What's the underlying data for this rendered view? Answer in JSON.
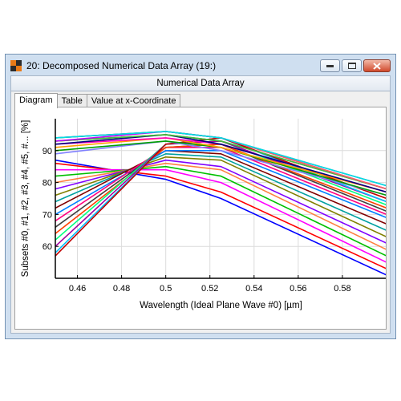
{
  "window": {
    "title": "20: Decomposed Numerical Data Array (19:)",
    "panel_header": "Numerical Data Array",
    "icons": {
      "app": "app-checker-icon",
      "minimize": "minimize-icon",
      "maximize": "maximize-icon",
      "close": "close-icon"
    }
  },
  "tabs": [
    {
      "label": "Diagram",
      "active": true
    },
    {
      "label": "Table",
      "active": false
    },
    {
      "label": "Value at x-Coordinate",
      "active": false
    }
  ],
  "chart_data": {
    "type": "line",
    "xlabel": "Wavelength (Ideal Plane Wave #0) [µm]",
    "ylabel": "Subsets #0, #1, #2, #3, #4, #5, #... [%]",
    "xlim": [
      0.45,
      0.6
    ],
    "ylim": [
      50,
      100
    ],
    "x_ticks": [
      "0.46",
      "0.48",
      "0.5",
      "0.52",
      "0.54",
      "0.56",
      "0.58"
    ],
    "y_ticks": [
      "60",
      "70",
      "80",
      "90"
    ],
    "y_tick_values": [
      60,
      70,
      80,
      90
    ],
    "x_tick_values": [
      0.46,
      0.48,
      0.5,
      0.52,
      0.54,
      0.56,
      0.58
    ],
    "grid": true,
    "series_count": 28,
    "series_shape": "concave curves; the peak wavelength of successive subsets shifts from about 0.45 µm to about 0.60 µm and a kink appears near 0.525 µm",
    "series": [
      {
        "color": "#0000ff",
        "x": [
          0.45,
          0.5,
          0.525,
          0.6
        ],
        "y": [
          87,
          81,
          75,
          51
        ]
      },
      {
        "color": "#ff0000",
        "x": [
          0.45,
          0.5,
          0.525,
          0.6
        ],
        "y": [
          86,
          82,
          77,
          53
        ]
      },
      {
        "color": "#ff00ff",
        "x": [
          0.45,
          0.5,
          0.525,
          0.6
        ],
        "y": [
          84,
          84,
          80,
          55
        ]
      },
      {
        "color": "#00c000",
        "x": [
          0.45,
          0.5,
          0.525,
          0.6
        ],
        "y": [
          82,
          85,
          82,
          57
        ]
      },
      {
        "color": "#ff8040",
        "x": [
          0.45,
          0.5,
          0.525,
          0.6
        ],
        "y": [
          80,
          86,
          84,
          59
        ]
      },
      {
        "color": "#8000ff",
        "x": [
          0.45,
          0.5,
          0.525,
          0.6
        ],
        "y": [
          78,
          87,
          85,
          61
        ]
      },
      {
        "color": "#808000",
        "x": [
          0.45,
          0.5,
          0.525,
          0.6
        ],
        "y": [
          76,
          88,
          87,
          63
        ]
      },
      {
        "color": "#00a0a0",
        "x": [
          0.45,
          0.5,
          0.525,
          0.6
        ],
        "y": [
          74,
          89,
          88,
          65
        ]
      },
      {
        "color": "#800000",
        "x": [
          0.45,
          0.5,
          0.525,
          0.6
        ],
        "y": [
          72,
          90,
          89,
          67
        ]
      },
      {
        "color": "#0080ff",
        "x": [
          0.45,
          0.5,
          0.525,
          0.6
        ],
        "y": [
          70,
          90,
          90,
          69
        ]
      },
      {
        "color": "#ff0080",
        "x": [
          0.45,
          0.5,
          0.525,
          0.6
        ],
        "y": [
          68,
          91,
          91,
          70
        ]
      },
      {
        "color": "#404040",
        "x": [
          0.45,
          0.5,
          0.525,
          0.6
        ],
        "y": [
          66,
          91,
          92,
          71
        ]
      },
      {
        "color": "#ff4000",
        "x": [
          0.45,
          0.5,
          0.525,
          0.6
        ],
        "y": [
          64,
          91,
          92,
          72
        ]
      },
      {
        "color": "#00ff80",
        "x": [
          0.45,
          0.5,
          0.525,
          0.6
        ],
        "y": [
          62,
          92,
          93,
          73
        ]
      },
      {
        "color": "#a000a0",
        "x": [
          0.45,
          0.5,
          0.525,
          0.6
        ],
        "y": [
          60,
          92,
          93,
          74
        ]
      },
      {
        "color": "#00c0ff",
        "x": [
          0.45,
          0.5,
          0.525,
          0.6
        ],
        "y": [
          58,
          92,
          94,
          74
        ]
      },
      {
        "color": "#c00000",
        "x": [
          0.45,
          0.5,
          0.525,
          0.6
        ],
        "y": [
          57,
          92,
          94,
          75
        ]
      },
      {
        "color": "#8080ff",
        "x": [
          0.45,
          0.5,
          0.525,
          0.6
        ],
        "y": [
          89,
          93,
          90,
          76
        ]
      },
      {
        "color": "#00a000",
        "x": [
          0.45,
          0.5,
          0.525,
          0.6
        ],
        "y": [
          90,
          93,
          91,
          76
        ]
      },
      {
        "color": "#ffa000",
        "x": [
          0.45,
          0.5,
          0.525,
          0.6
        ],
        "y": [
          91,
          94,
          91,
          77
        ]
      },
      {
        "color": "#ff00c0",
        "x": [
          0.45,
          0.5,
          0.525,
          0.6
        ],
        "y": [
          92,
          94,
          92,
          77
        ]
      },
      {
        "color": "#000080",
        "x": [
          0.45,
          0.5,
          0.525,
          0.6
        ],
        "y": [
          92,
          95,
          92,
          77
        ]
      },
      {
        "color": "#804000",
        "x": [
          0.45,
          0.5,
          0.525,
          0.6
        ],
        "y": [
          93,
          95,
          93,
          78
        ]
      },
      {
        "color": "#40c040",
        "x": [
          0.45,
          0.5,
          0.525,
          0.6
        ],
        "y": [
          93,
          95,
          93,
          78
        ]
      },
      {
        "color": "#c000ff",
        "x": [
          0.45,
          0.5,
          0.525,
          0.6
        ],
        "y": [
          93,
          96,
          94,
          78
        ]
      },
      {
        "color": "#ff6060",
        "x": [
          0.45,
          0.5,
          0.525,
          0.6
        ],
        "y": [
          94,
          96,
          94,
          78
        ]
      },
      {
        "color": "#4040c0",
        "x": [
          0.45,
          0.5,
          0.525,
          0.6
        ],
        "y": [
          94,
          96,
          94,
          79
        ]
      },
      {
        "color": "#00e0e0",
        "x": [
          0.45,
          0.5,
          0.525,
          0.6
        ],
        "y": [
          94,
          96,
          94,
          79
        ]
      }
    ]
  }
}
